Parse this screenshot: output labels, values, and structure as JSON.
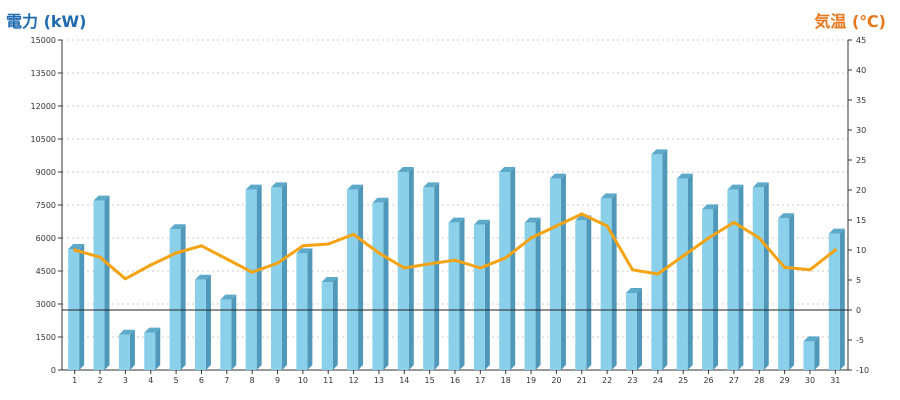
{
  "chart_data": {
    "type": "bar+line",
    "left_axis_title": "電力 (kW)",
    "right_axis_title": "気温 (℃)",
    "categories": [
      "1",
      "2",
      "3",
      "4",
      "5",
      "6",
      "7",
      "8",
      "9",
      "10",
      "11",
      "12",
      "13",
      "14",
      "15",
      "16",
      "17",
      "18",
      "19",
      "20",
      "21",
      "22",
      "23",
      "24",
      "25",
      "26",
      "27",
      "28",
      "29",
      "30",
      "31"
    ],
    "series": [
      {
        "type": "bar",
        "axis": "left",
        "values": [
          5500,
          7700,
          1600,
          1700,
          6400,
          4100,
          3200,
          8200,
          8300,
          5300,
          4000,
          8200,
          7600,
          9000,
          8300,
          6700,
          6600,
          9000,
          6700,
          8700,
          6800,
          7800,
          3500,
          9800,
          8700,
          7300,
          8200,
          8300,
          6900,
          1300,
          6200
        ]
      },
      {
        "type": "line",
        "axis": "right",
        "values": [
          10,
          8.8,
          5.2,
          7.5,
          9.5,
          10.7,
          8.5,
          6.3,
          7.8,
          10.7,
          11,
          12.6,
          9.5,
          7,
          7.7,
          8.3,
          7,
          8.7,
          12,
          14,
          16,
          14,
          6.7,
          6,
          9,
          12,
          14.6,
          12,
          7.1,
          6.7,
          10
        ]
      }
    ],
    "left_axis": {
      "ylim": [
        0,
        15000
      ],
      "ticks": [
        "0",
        "1500",
        "3000",
        "4500",
        "6000",
        "7500",
        "9000",
        "10500",
        "12000",
        "13500",
        "15000"
      ]
    },
    "right_axis": {
      "ylim": [
        -10,
        45
      ],
      "ticks": [
        "-10",
        "-5",
        "0",
        "5",
        "10",
        "15",
        "20",
        "25",
        "30",
        "35",
        "40",
        "45"
      ]
    },
    "reference_line": {
      "axis": "right",
      "value": 0
    },
    "grid": "horizontal-dashed",
    "colors": {
      "bar_front": "#8ad0ea",
      "bar_side": "#4f98ba",
      "bar_top": "#5da9c9",
      "line": "#f5a312",
      "left_title": "#1f6ab0",
      "right_title": "#e8781c"
    }
  }
}
